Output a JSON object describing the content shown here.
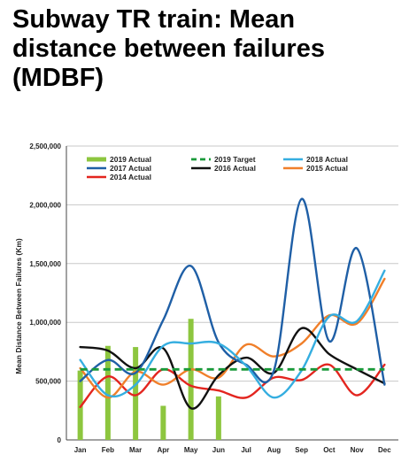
{
  "header": {
    "title_lines": [
      "Subway TR train: Mean",
      "distance between failures",
      "(MDBF)"
    ]
  },
  "chart_data": {
    "type": "line",
    "title": "",
    "xlabel": "",
    "ylabel": "Mean Distance Between Failures (Km)",
    "categories": [
      "Jan",
      "Feb",
      "Mar",
      "Apr",
      "May",
      "Jun",
      "Jul",
      "Aug",
      "Sep",
      "Oct",
      "Nov",
      "Dec"
    ],
    "ylim": [
      0,
      2500000
    ],
    "yticks": [
      0,
      500000,
      1000000,
      1500000,
      2000000,
      2500000
    ],
    "ytick_labels": [
      "0",
      "500,000",
      "1,000,000",
      "1,500,000",
      "2,000,000",
      "2,500,000"
    ],
    "grid": "horizontal",
    "legend_position": "top",
    "legend_order": [
      "2019 Actual",
      "2019 Target",
      "2018 Actual",
      "2017 Actual",
      "2016 Actual",
      "2015 Actual",
      "2014 Actual"
    ],
    "bars": {
      "name": "2019 Actual",
      "color": "#8dc63f",
      "values": [
        590000,
        800000,
        790000,
        290000,
        1030000,
        370000,
        null,
        null,
        null,
        null,
        null,
        null
      ]
    },
    "target": {
      "name": "2019 Target",
      "color": "#1a9a3a",
      "style": "dashed",
      "values": [
        600000,
        600000,
        600000,
        600000,
        600000,
        600000,
        600000,
        600000,
        600000,
        600000,
        600000,
        600000
      ]
    },
    "series": [
      {
        "name": "2018 Actual",
        "color": "#35aee0",
        "values": [
          680000,
          380000,
          470000,
          800000,
          820000,
          820000,
          630000,
          360000,
          590000,
          1050000,
          1010000,
          1440000
        ]
      },
      {
        "name": "2017 Actual",
        "color": "#1f5fa6",
        "values": [
          500000,
          680000,
          570000,
          1020000,
          1480000,
          830000,
          640000,
          590000,
          2050000,
          840000,
          1630000,
          470000
        ]
      },
      {
        "name": "2016 Actual",
        "color": "#111111",
        "values": [
          790000,
          760000,
          610000,
          780000,
          270000,
          550000,
          700000,
          570000,
          950000,
          730000,
          600000,
          480000
        ]
      },
      {
        "name": "2015 Actual",
        "color": "#f07f2a",
        "values": [
          610000,
          360000,
          580000,
          470000,
          600000,
          530000,
          810000,
          710000,
          820000,
          1060000,
          990000,
          1370000
        ]
      },
      {
        "name": "2014 Actual",
        "color": "#e3251f",
        "values": [
          280000,
          540000,
          380000,
          600000,
          460000,
          420000,
          360000,
          530000,
          510000,
          640000,
          380000,
          640000
        ]
      }
    ]
  }
}
